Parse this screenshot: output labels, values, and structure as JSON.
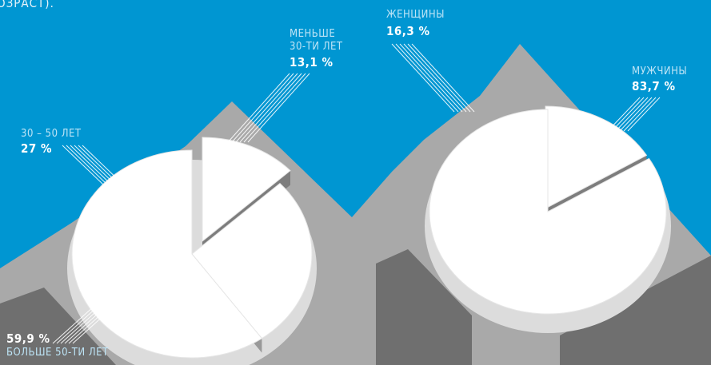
{
  "header_fragment": "ОЗРАСТ).",
  "colors": {
    "background": "#0096d2",
    "slice": "#ffffff",
    "rim": "#dcdcdc",
    "slice_edge": "#999999",
    "shadow_light": "#a9a9a9",
    "shadow_dark": "#6f6f6f",
    "label": "#bde4f6"
  },
  "chart_data": [
    {
      "type": "pie",
      "series": [
        {
          "name": "МЕНЬШЕ 30-ТИ ЛЕТ",
          "label_line1": "МЕНЬШЕ",
          "label_line2": "30-ТИ ЛЕТ",
          "value_text": "13,1 %",
          "value": 13.1
        },
        {
          "name": "30 – 50 ЛЕТ",
          "label_line1": "30 – 50 ЛЕТ",
          "value_text": "27 %",
          "value": 27
        },
        {
          "name": "БОЛЬШЕ 50-ТИ ЛЕТ",
          "label_line1": "БОЛЬШЕ 50-ТИ ЛЕТ",
          "value_text": "59,9 %",
          "value": 59.9
        }
      ]
    },
    {
      "type": "pie",
      "series": [
        {
          "name": "ЖЕНЩИНЫ",
          "label_line1": "ЖЕНЩИНЫ",
          "value_text": "16,3 %",
          "value": 16.3
        },
        {
          "name": "МУЖЧИНЫ",
          "label_line1": "МУЖЧИНЫ",
          "value_text": "83,7 %",
          "value": 83.7
        }
      ]
    }
  ]
}
